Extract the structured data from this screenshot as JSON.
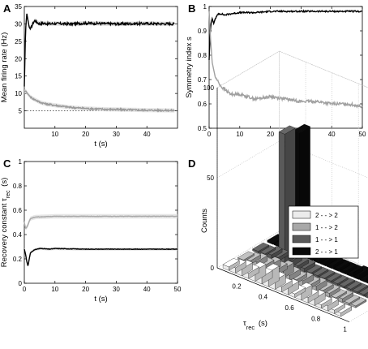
{
  "panels": {
    "a": {
      "label": "A"
    },
    "b": {
      "label": "B"
    },
    "c": {
      "label": "C"
    },
    "d": {
      "label": "D"
    }
  },
  "chart_data": [
    {
      "panel": "A",
      "type": "line",
      "xlabel": "t (s)",
      "ylabel": "Mean firing rate (Hz)",
      "xlim": [
        0,
        50
      ],
      "ylim": [
        0,
        35
      ],
      "xticks": [
        10,
        20,
        30,
        40
      ],
      "yticks": [
        5,
        10,
        15,
        20,
        25,
        30,
        35
      ],
      "reference_line": {
        "y": 5,
        "style": "dotted"
      },
      "series": [
        {
          "color": "#000000",
          "x": [
            0,
            0.4,
            0.8,
            1.2,
            1.6,
            2.0,
            2.5,
            3.0,
            3.5,
            4.0,
            5,
            6,
            8,
            10,
            15,
            20,
            30,
            40,
            49
          ],
          "y": [
            12,
            28,
            33,
            31,
            29,
            28.5,
            29.5,
            30.5,
            31,
            30.5,
            30,
            30.2,
            30,
            30.1,
            30,
            30.2,
            30,
            30.1,
            30
          ]
        },
        {
          "color": "#9a9a9a",
          "x": [
            0,
            0.5,
            1,
            2,
            3,
            4,
            5,
            7,
            10,
            15,
            20,
            25,
            30,
            40,
            49
          ],
          "y": [
            10.5,
            10.7,
            10,
            9,
            8.4,
            8,
            7.5,
            7,
            6.6,
            6,
            5.7,
            5.5,
            5.4,
            5.2,
            5.1
          ]
        }
      ]
    },
    {
      "panel": "B",
      "type": "line",
      "xlabel": "t (s)",
      "ylabel": "Symmetry index s",
      "xlim": [
        0,
        50
      ],
      "ylim": [
        0.5,
        1
      ],
      "xticks": [
        0,
        10,
        20,
        30,
        40,
        50
      ],
      "yticks": [
        0.5,
        0.6,
        0.7,
        0.8,
        0.9,
        1
      ],
      "series": [
        {
          "color": "#000000",
          "x": [
            0,
            0.3,
            0.6,
            1,
            1.5,
            2,
            3,
            4,
            5,
            7,
            10,
            15,
            20,
            30,
            40,
            50
          ],
          "y": [
            0.78,
            0.88,
            0.93,
            0.95,
            0.93,
            0.95,
            0.97,
            0.97,
            0.965,
            0.97,
            0.975,
            0.975,
            0.98,
            0.98,
            0.98,
            0.98
          ]
        },
        {
          "color": "#a0a0a0",
          "x": [
            0,
            0.5,
            1,
            1.5,
            2,
            3,
            4,
            5,
            7,
            10,
            15,
            20,
            25,
            30,
            35,
            40,
            45,
            50
          ],
          "y": [
            0.98,
            0.86,
            0.77,
            0.74,
            0.71,
            0.69,
            0.67,
            0.66,
            0.64,
            0.64,
            0.62,
            0.63,
            0.62,
            0.61,
            0.61,
            0.6,
            0.6,
            0.59
          ]
        }
      ]
    },
    {
      "panel": "C",
      "type": "line",
      "xlabel": "t (s)",
      "ylabel": "Recovery constant",
      "ylabel_symbol": "τ",
      "ylabel_sub": "rec",
      "ylabel_unit": "(s)",
      "xlim": [
        0,
        50
      ],
      "ylim": [
        0,
        1
      ],
      "xticks": [
        0,
        10,
        20,
        30,
        40,
        50
      ],
      "yticks": [
        0,
        0.2,
        0.4,
        0.6,
        0.8,
        1
      ],
      "series": [
        {
          "color": "#000000",
          "x": [
            0,
            0.4,
            0.8,
            1.2,
            1.6,
            2,
            3,
            4,
            5,
            6,
            8,
            10,
            20,
            30,
            40,
            50
          ],
          "y": [
            0.28,
            0.24,
            0.18,
            0.14,
            0.2,
            0.25,
            0.27,
            0.28,
            0.285,
            0.285,
            0.28,
            0.285,
            0.28,
            0.28,
            0.28,
            0.28
          ]
        },
        {
          "color": "#a8a8a8",
          "x": [
            0,
            0.4,
            0.8,
            1.2,
            1.6,
            2,
            3,
            4,
            5,
            10,
            20,
            30,
            40,
            50
          ],
          "y": [
            0.5,
            0.45,
            0.46,
            0.48,
            0.51,
            0.53,
            0.54,
            0.545,
            0.545,
            0.55,
            0.55,
            0.55,
            0.55,
            0.55
          ]
        }
      ]
    },
    {
      "panel": "D",
      "type": "bar",
      "xlabel": "τrec (s)",
      "ylabel": "Counts",
      "zlim": [
        0,
        100
      ],
      "zticks": [
        0,
        50,
        100
      ],
      "xticks": [
        0.2,
        0.4,
        0.6,
        0.8,
        1
      ],
      "legend_placement": "right",
      "series": [
        {
          "name": "2 - - > 2",
          "color": "#ececec",
          "y": 0,
          "x": [
            0.05,
            0.1,
            0.15,
            0.2,
            0.25,
            0.3,
            0.35,
            0.4,
            0.45,
            0.5,
            0.55,
            0.6,
            0.65,
            0.7,
            0.75,
            0.8,
            0.85,
            0.9
          ],
          "values": [
            2,
            3,
            4,
            3,
            6,
            4,
            8,
            5,
            3,
            4,
            2,
            5,
            3,
            4,
            2,
            3,
            2,
            2
          ]
        },
        {
          "name": "1 - - > 2",
          "color": "#a8a8a8",
          "y": 1,
          "x": [
            0.05,
            0.1,
            0.15,
            0.2,
            0.25,
            0.3,
            0.35,
            0.4,
            0.45,
            0.5,
            0.55,
            0.6,
            0.65,
            0.7,
            0.75,
            0.8,
            0.85,
            0.9
          ],
          "values": [
            1,
            2,
            3,
            2,
            4,
            3,
            5,
            3,
            2,
            3,
            2,
            3,
            2,
            2,
            1,
            2,
            1,
            1
          ]
        },
        {
          "name": "1 - - > 1",
          "color": "#5a5a5a",
          "y": 2,
          "x": [
            0.05,
            0.1,
            0.15,
            0.2,
            0.25,
            0.3,
            0.35,
            0.4,
            0.45,
            0.5,
            0.55,
            0.6,
            0.65,
            0.7,
            0.75,
            0.8,
            0.85,
            0.9
          ],
          "values": [
            1,
            1,
            2,
            2,
            72,
            3,
            2,
            2,
            1,
            1,
            1,
            1,
            1,
            1,
            1,
            1,
            1,
            1
          ]
        },
        {
          "name": "2 - - > 1",
          "color": "#0a0a0a",
          "y": 3,
          "x": [
            0.05,
            0.1,
            0.15,
            0.2,
            0.25,
            0.3,
            0.35,
            0.4,
            0.45,
            0.5,
            0.55,
            0.6,
            0.65,
            0.7,
            0.75,
            0.8,
            0.85,
            0.9
          ],
          "values": [
            1,
            1,
            1,
            2,
            68,
            3,
            4,
            5,
            3,
            2,
            2,
            2,
            2,
            3,
            2,
            2,
            1,
            1
          ]
        }
      ]
    }
  ]
}
